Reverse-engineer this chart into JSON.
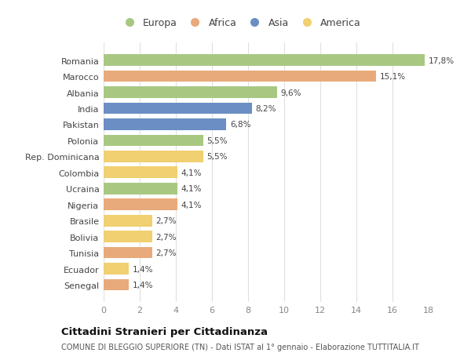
{
  "categories": [
    "Romania",
    "Marocco",
    "Albania",
    "India",
    "Pakistan",
    "Polonia",
    "Rep. Dominicana",
    "Colombia",
    "Ucraina",
    "Nigeria",
    "Brasile",
    "Bolivia",
    "Tunisia",
    "Ecuador",
    "Senegal"
  ],
  "values": [
    17.8,
    15.1,
    9.6,
    8.2,
    6.8,
    5.5,
    5.5,
    4.1,
    4.1,
    4.1,
    2.7,
    2.7,
    2.7,
    1.4,
    1.4
  ],
  "labels": [
    "17,8%",
    "15,1%",
    "9,6%",
    "8,2%",
    "6,8%",
    "5,5%",
    "5,5%",
    "4,1%",
    "4,1%",
    "4,1%",
    "2,7%",
    "2,7%",
    "2,7%",
    "1,4%",
    "1,4%"
  ],
  "colors": [
    "#a8c882",
    "#e8aa7a",
    "#a8c882",
    "#6b8fc4",
    "#6b8fc4",
    "#a8c882",
    "#f0d070",
    "#f0d070",
    "#a8c882",
    "#e8aa7a",
    "#f0d070",
    "#f0d070",
    "#e8aa7a",
    "#f0d070",
    "#e8aa7a"
  ],
  "legend": [
    {
      "label": "Europa",
      "color": "#a8c882"
    },
    {
      "label": "Africa",
      "color": "#e8aa7a"
    },
    {
      "label": "Asia",
      "color": "#6b8fc4"
    },
    {
      "label": "America",
      "color": "#f0d070"
    }
  ],
  "xlim": [
    0,
    18
  ],
  "xticks": [
    0,
    2,
    4,
    6,
    8,
    10,
    12,
    14,
    16,
    18
  ],
  "title": "Cittadini Stranieri per Cittadinanza",
  "subtitle": "COMUNE DI BLEGGIO SUPERIORE (TN) - Dati ISTAT al 1° gennaio - Elaborazione TUTTITALIA.IT",
  "background_color": "#ffffff",
  "grid_color": "#e0e0e0",
  "bar_height": 0.72
}
